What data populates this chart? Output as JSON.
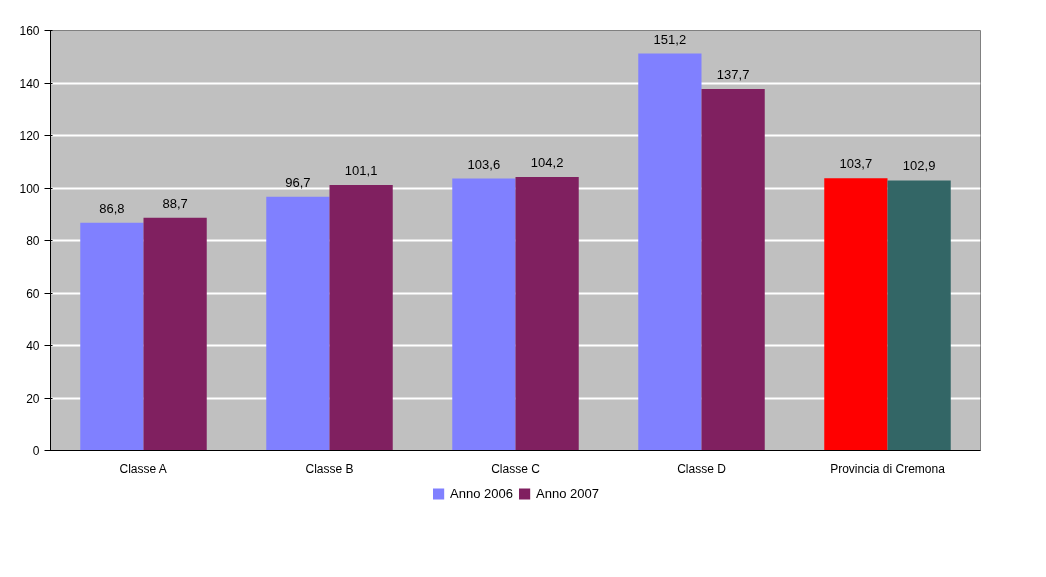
{
  "chart_data": {
    "type": "bar",
    "categories": [
      "Classe A",
      "Classe B",
      "Classe C",
      "Classe D",
      "Provincia di Cremona"
    ],
    "series": [
      {
        "name": "Anno 2006",
        "color": "#8080ff",
        "colors": [
          "#8080ff",
          "#8080ff",
          "#8080ff",
          "#8080ff",
          "#ff0000"
        ],
        "values": [
          86.8,
          96.7,
          103.6,
          151.2,
          103.7
        ],
        "value_labels": [
          "86,8",
          "96,7",
          "103,6",
          "151,2",
          "103,7"
        ]
      },
      {
        "name": "Anno 2007",
        "color": "#802060",
        "colors": [
          "#802060",
          "#802060",
          "#802060",
          "#802060",
          "#336666"
        ],
        "values": [
          88.7,
          101.1,
          104.2,
          137.7,
          102.9
        ],
        "value_labels": [
          "88,7",
          "101,1",
          "104,2",
          "137,7",
          "102,9"
        ]
      }
    ],
    "ylim": [
      0,
      160
    ],
    "yticks": [
      0,
      20,
      40,
      60,
      80,
      100,
      120,
      140,
      160
    ],
    "grid": "y",
    "legend": "bottom",
    "data_labels": true
  }
}
